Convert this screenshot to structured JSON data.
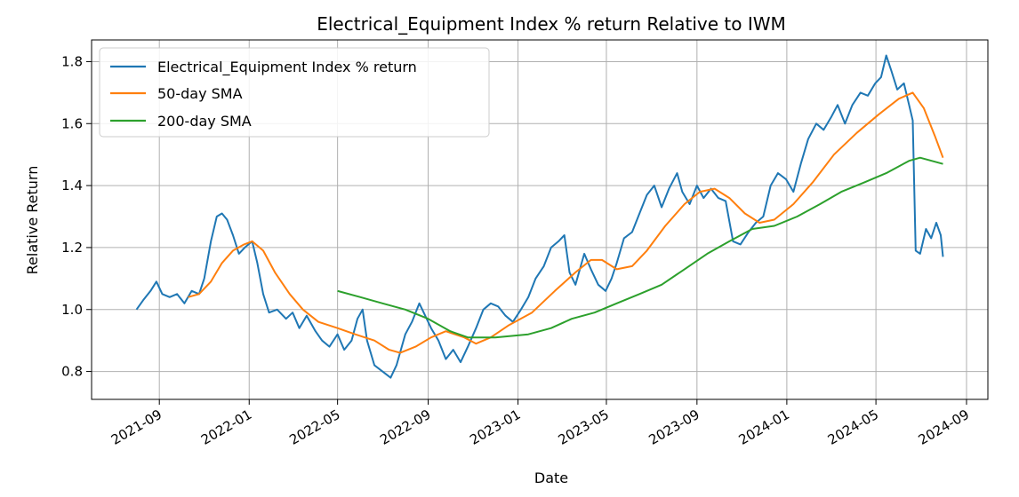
{
  "chart_data": {
    "type": "line",
    "title": "Electrical_Equipment Index % return Relative to IWM",
    "xlabel": "Date",
    "ylabel": "Relative Return",
    "xlim": [
      "2021-06-01",
      "2024-09-30"
    ],
    "ylim": [
      0.71,
      1.87
    ],
    "grid": true,
    "legend_position": "top-left",
    "x_ticks": [
      "2021-09",
      "2022-01",
      "2022-05",
      "2022-09",
      "2023-01",
      "2023-05",
      "2023-09",
      "2024-01",
      "2024-05",
      "2024-09"
    ],
    "y_ticks": [
      "0.8",
      "1.0",
      "1.2",
      "1.4",
      "1.6",
      "1.8"
    ],
    "series": [
      {
        "name": "Electrical_Equipment Index % return",
        "color": "#1f77b4",
        "points": [
          [
            "2021-08-01",
            1.0
          ],
          [
            "2021-08-10",
            1.03
          ],
          [
            "2021-08-20",
            1.06
          ],
          [
            "2021-08-28",
            1.09
          ],
          [
            "2021-09-05",
            1.05
          ],
          [
            "2021-09-15",
            1.04
          ],
          [
            "2021-09-25",
            1.05
          ],
          [
            "2021-10-05",
            1.02
          ],
          [
            "2021-10-15",
            1.06
          ],
          [
            "2021-10-25",
            1.05
          ],
          [
            "2021-11-01",
            1.1
          ],
          [
            "2021-11-10",
            1.22
          ],
          [
            "2021-11-18",
            1.3
          ],
          [
            "2021-11-25",
            1.31
          ],
          [
            "2021-12-02",
            1.29
          ],
          [
            "2021-12-10",
            1.24
          ],
          [
            "2021-12-18",
            1.18
          ],
          [
            "2021-12-26",
            1.2
          ],
          [
            "2022-01-05",
            1.22
          ],
          [
            "2022-01-12",
            1.15
          ],
          [
            "2022-01-20",
            1.05
          ],
          [
            "2022-01-28",
            0.99
          ],
          [
            "2022-02-08",
            1.0
          ],
          [
            "2022-02-20",
            0.97
          ],
          [
            "2022-03-01",
            0.99
          ],
          [
            "2022-03-10",
            0.94
          ],
          [
            "2022-03-20",
            0.98
          ],
          [
            "2022-04-01",
            0.93
          ],
          [
            "2022-04-10",
            0.9
          ],
          [
            "2022-04-20",
            0.88
          ],
          [
            "2022-05-01",
            0.92
          ],
          [
            "2022-05-10",
            0.87
          ],
          [
            "2022-05-20",
            0.9
          ],
          [
            "2022-05-28",
            0.97
          ],
          [
            "2022-06-04",
            1.0
          ],
          [
            "2022-06-10",
            0.9
          ],
          [
            "2022-06-20",
            0.82
          ],
          [
            "2022-07-01",
            0.8
          ],
          [
            "2022-07-12",
            0.78
          ],
          [
            "2022-07-20",
            0.82
          ],
          [
            "2022-08-01",
            0.92
          ],
          [
            "2022-08-10",
            0.96
          ],
          [
            "2022-08-20",
            1.02
          ],
          [
            "2022-08-28",
            0.98
          ],
          [
            "2022-09-05",
            0.94
          ],
          [
            "2022-09-15",
            0.9
          ],
          [
            "2022-09-25",
            0.84
          ],
          [
            "2022-10-05",
            0.87
          ],
          [
            "2022-10-15",
            0.83
          ],
          [
            "2022-10-25",
            0.88
          ],
          [
            "2022-11-05",
            0.94
          ],
          [
            "2022-11-15",
            1.0
          ],
          [
            "2022-11-25",
            1.02
          ],
          [
            "2022-12-05",
            1.01
          ],
          [
            "2022-12-15",
            0.98
          ],
          [
            "2022-12-25",
            0.96
          ],
          [
            "2023-01-05",
            1.0
          ],
          [
            "2023-01-15",
            1.04
          ],
          [
            "2023-01-25",
            1.1
          ],
          [
            "2023-02-05",
            1.14
          ],
          [
            "2023-02-15",
            1.2
          ],
          [
            "2023-02-25",
            1.22
          ],
          [
            "2023-03-05",
            1.24
          ],
          [
            "2023-03-12",
            1.12
          ],
          [
            "2023-03-20",
            1.08
          ],
          [
            "2023-04-01",
            1.18
          ],
          [
            "2023-04-10",
            1.13
          ],
          [
            "2023-04-20",
            1.08
          ],
          [
            "2023-04-30",
            1.06
          ],
          [
            "2023-05-08",
            1.1
          ],
          [
            "2023-05-15",
            1.15
          ],
          [
            "2023-05-25",
            1.23
          ],
          [
            "2023-06-05",
            1.25
          ],
          [
            "2023-06-15",
            1.31
          ],
          [
            "2023-06-25",
            1.37
          ],
          [
            "2023-07-05",
            1.4
          ],
          [
            "2023-07-15",
            1.33
          ],
          [
            "2023-07-25",
            1.39
          ],
          [
            "2023-08-05",
            1.44
          ],
          [
            "2023-08-12",
            1.38
          ],
          [
            "2023-08-22",
            1.34
          ],
          [
            "2023-09-01",
            1.4
          ],
          [
            "2023-09-10",
            1.36
          ],
          [
            "2023-09-20",
            1.39
          ],
          [
            "2023-09-30",
            1.36
          ],
          [
            "2023-10-10",
            1.35
          ],
          [
            "2023-10-20",
            1.22
          ],
          [
            "2023-10-30",
            1.21
          ],
          [
            "2023-11-10",
            1.25
          ],
          [
            "2023-11-20",
            1.28
          ],
          [
            "2023-11-30",
            1.3
          ],
          [
            "2023-12-10",
            1.4
          ],
          [
            "2023-12-20",
            1.44
          ],
          [
            "2023-12-31",
            1.42
          ],
          [
            "2024-01-10",
            1.38
          ],
          [
            "2024-01-20",
            1.47
          ],
          [
            "2024-01-30",
            1.55
          ],
          [
            "2024-02-10",
            1.6
          ],
          [
            "2024-02-20",
            1.58
          ],
          [
            "2024-03-01",
            1.62
          ],
          [
            "2024-03-10",
            1.66
          ],
          [
            "2024-03-20",
            1.6
          ],
          [
            "2024-03-30",
            1.66
          ],
          [
            "2024-04-10",
            1.7
          ],
          [
            "2024-04-20",
            1.69
          ],
          [
            "2024-04-30",
            1.73
          ],
          [
            "2024-05-08",
            1.75
          ],
          [
            "2024-05-15",
            1.82
          ],
          [
            "2024-05-22",
            1.77
          ],
          [
            "2024-05-30",
            1.71
          ],
          [
            "2024-06-08",
            1.73
          ],
          [
            "2024-06-15",
            1.66
          ],
          [
            "2024-06-20",
            1.61
          ],
          [
            "2024-06-24",
            1.19
          ],
          [
            "2024-06-30",
            1.18
          ],
          [
            "2024-07-08",
            1.26
          ],
          [
            "2024-07-15",
            1.23
          ],
          [
            "2024-07-22",
            1.28
          ],
          [
            "2024-07-28",
            1.24
          ],
          [
            "2024-07-31",
            1.17
          ]
        ]
      },
      {
        "name": "50-day SMA",
        "color": "#ff7f0e",
        "points": [
          [
            "2021-10-10",
            1.04
          ],
          [
            "2021-10-25",
            1.05
          ],
          [
            "2021-11-10",
            1.09
          ],
          [
            "2021-11-25",
            1.15
          ],
          [
            "2021-12-10",
            1.19
          ],
          [
            "2021-12-25",
            1.21
          ],
          [
            "2022-01-05",
            1.22
          ],
          [
            "2022-01-20",
            1.19
          ],
          [
            "2022-02-05",
            1.12
          ],
          [
            "2022-02-25",
            1.05
          ],
          [
            "2022-03-15",
            1.0
          ],
          [
            "2022-04-05",
            0.96
          ],
          [
            "2022-05-01",
            0.94
          ],
          [
            "2022-05-25",
            0.92
          ],
          [
            "2022-06-20",
            0.9
          ],
          [
            "2022-07-10",
            0.87
          ],
          [
            "2022-07-25",
            0.86
          ],
          [
            "2022-08-15",
            0.88
          ],
          [
            "2022-09-05",
            0.91
          ],
          [
            "2022-09-25",
            0.93
          ],
          [
            "2022-10-20",
            0.91
          ],
          [
            "2022-11-05",
            0.89
          ],
          [
            "2022-11-25",
            0.91
          ],
          [
            "2022-12-20",
            0.95
          ],
          [
            "2023-01-20",
            0.99
          ],
          [
            "2023-02-20",
            1.06
          ],
          [
            "2023-03-20",
            1.12
          ],
          [
            "2023-04-10",
            1.16
          ],
          [
            "2023-04-25",
            1.16
          ],
          [
            "2023-05-15",
            1.13
          ],
          [
            "2023-06-05",
            1.14
          ],
          [
            "2023-06-25",
            1.19
          ],
          [
            "2023-07-20",
            1.27
          ],
          [
            "2023-08-15",
            1.34
          ],
          [
            "2023-09-05",
            1.38
          ],
          [
            "2023-09-25",
            1.39
          ],
          [
            "2023-10-15",
            1.36
          ],
          [
            "2023-11-05",
            1.31
          ],
          [
            "2023-11-25",
            1.28
          ],
          [
            "2023-12-15",
            1.29
          ],
          [
            "2024-01-10",
            1.34
          ],
          [
            "2024-02-05",
            1.41
          ],
          [
            "2024-03-05",
            1.5
          ],
          [
            "2024-04-05",
            1.57
          ],
          [
            "2024-05-05",
            1.63
          ],
          [
            "2024-06-01",
            1.68
          ],
          [
            "2024-06-20",
            1.7
          ],
          [
            "2024-07-05",
            1.65
          ],
          [
            "2024-07-20",
            1.56
          ],
          [
            "2024-07-31",
            1.49
          ]
        ]
      },
      {
        "name": "200-day SMA",
        "color": "#2ca02c",
        "points": [
          [
            "2022-05-01",
            1.06
          ],
          [
            "2022-06-01",
            1.04
          ],
          [
            "2022-07-01",
            1.02
          ],
          [
            "2022-08-01",
            1.0
          ],
          [
            "2022-09-01",
            0.97
          ],
          [
            "2022-10-01",
            0.93
          ],
          [
            "2022-10-25",
            0.91
          ],
          [
            "2022-12-01",
            0.91
          ],
          [
            "2023-01-15",
            0.92
          ],
          [
            "2023-02-15",
            0.94
          ],
          [
            "2023-03-15",
            0.97
          ],
          [
            "2023-04-15",
            0.99
          ],
          [
            "2023-05-15",
            1.02
          ],
          [
            "2023-06-15",
            1.05
          ],
          [
            "2023-07-15",
            1.08
          ],
          [
            "2023-08-15",
            1.13
          ],
          [
            "2023-09-15",
            1.18
          ],
          [
            "2023-10-15",
            1.22
          ],
          [
            "2023-11-15",
            1.26
          ],
          [
            "2023-12-15",
            1.27
          ],
          [
            "2024-01-15",
            1.3
          ],
          [
            "2024-02-15",
            1.34
          ],
          [
            "2024-03-15",
            1.38
          ],
          [
            "2024-04-15",
            1.41
          ],
          [
            "2024-05-15",
            1.44
          ],
          [
            "2024-06-15",
            1.48
          ],
          [
            "2024-06-30",
            1.49
          ],
          [
            "2024-07-31",
            1.47
          ]
        ]
      }
    ]
  }
}
